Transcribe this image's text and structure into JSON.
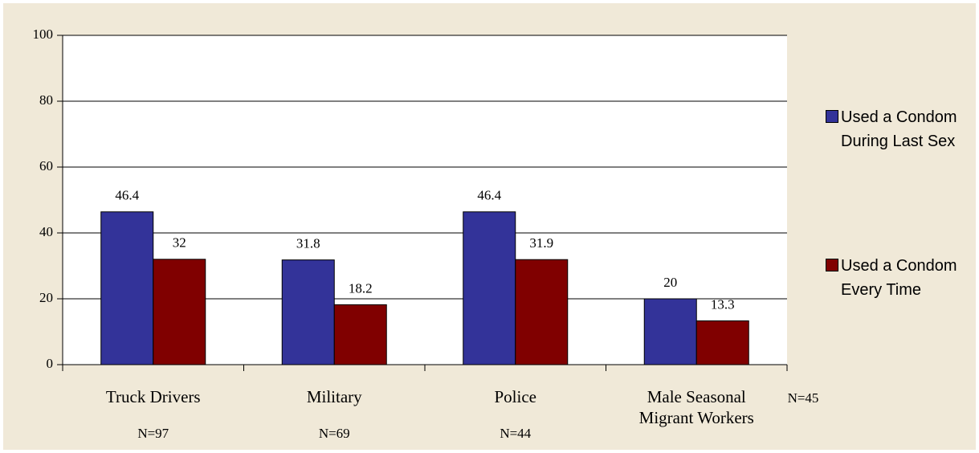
{
  "chart_data": {
    "type": "bar",
    "categories": [
      "Truck Drivers",
      "Military",
      "Police",
      "Male Seasonal Migrant Workers"
    ],
    "sample_sizes": [
      "N=97",
      "N=69",
      "N=44",
      "N=45"
    ],
    "series": [
      {
        "name": "Used a Condom During Last Sex",
        "color": "#333399",
        "values": [
          46.4,
          31.8,
          46.4,
          20
        ]
      },
      {
        "name": "Used a Condom Every Time",
        "color": "#800000",
        "values": [
          32,
          18.2,
          31.9,
          13.3
        ]
      }
    ],
    "ylim": [
      0,
      100
    ],
    "yticks": [
      0,
      20,
      40,
      60,
      80,
      100
    ],
    "grid": true,
    "legend": "right"
  }
}
